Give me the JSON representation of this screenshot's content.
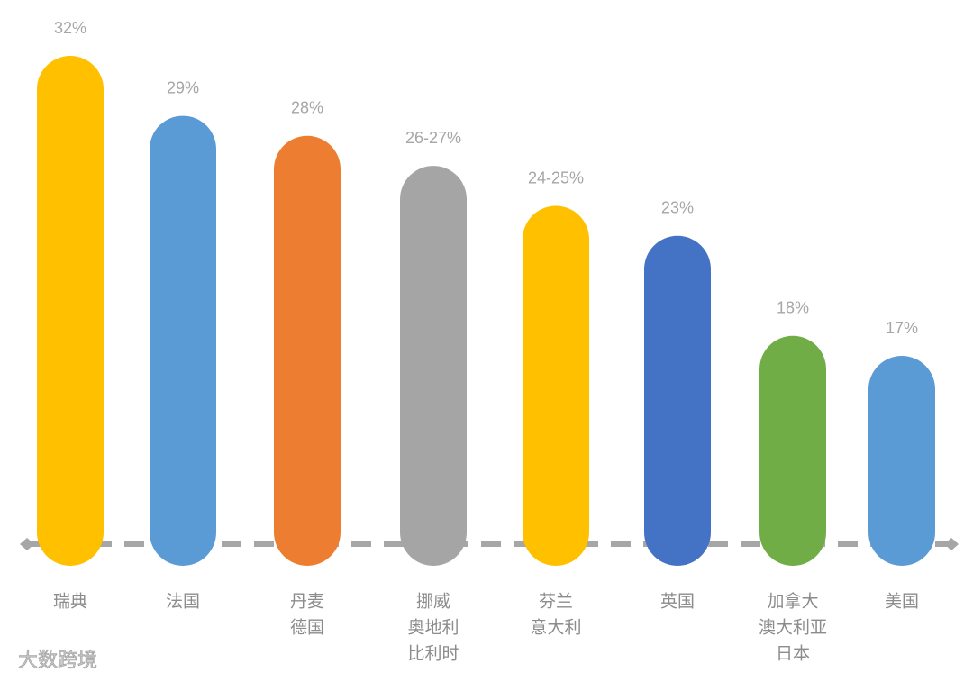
{
  "chart_data": {
    "type": "bar",
    "categories": [
      [
        "瑞典"
      ],
      [
        "法国"
      ],
      [
        "丹麦",
        "德国"
      ],
      [
        "挪威",
        "奥地利",
        "比利时"
      ],
      [
        "芬兰",
        "意大利"
      ],
      [
        "英国"
      ],
      [
        "加拿大",
        "澳大利亚",
        "日本"
      ],
      [
        "美国"
      ]
    ],
    "values": [
      32,
      29,
      28,
      26.5,
      24.5,
      23,
      18,
      17
    ],
    "value_labels": [
      "32%",
      "29%",
      "28%",
      "26-27%",
      "24-25%",
      "23%",
      "18%",
      "17%"
    ],
    "colors": [
      "#ffc000",
      "#5b9bd5",
      "#ed7d31",
      "#a5a5a5",
      "#ffc000",
      "#4472c4",
      "#70ad47",
      "#5b9bd5"
    ]
  },
  "watermark": "大数跨境"
}
